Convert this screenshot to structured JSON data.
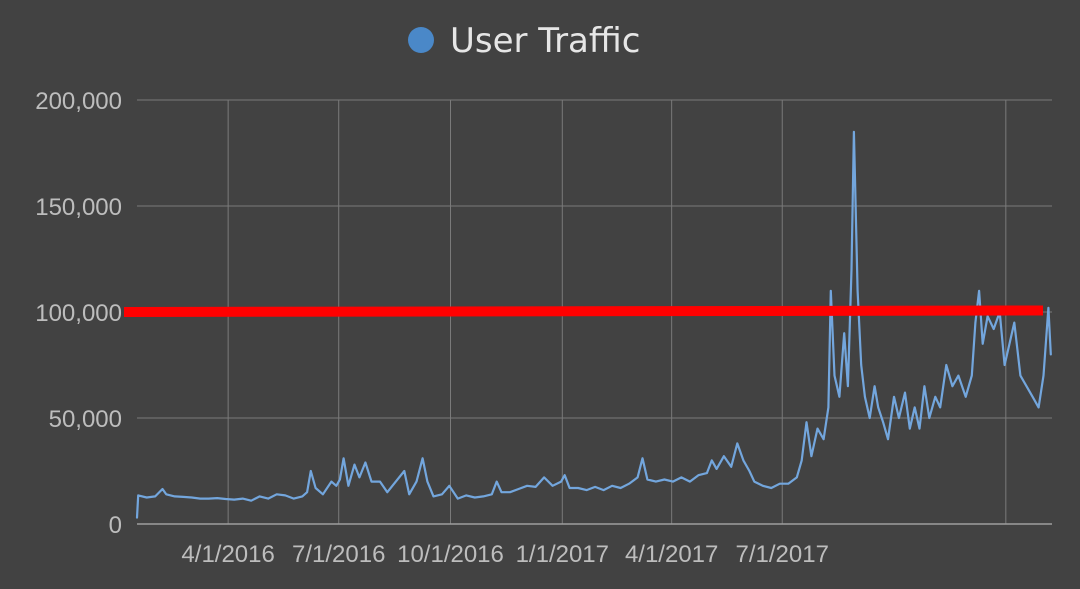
{
  "chart_data": {
    "type": "line",
    "legend": {
      "position": "top-center",
      "entries": [
        {
          "name": "User Traffic",
          "color": "#4a88c8"
        }
      ]
    },
    "series": [
      {
        "name": "User Traffic",
        "color": "#73a6dd",
        "points": [
          [
            "2016-01-17",
            3000
          ],
          [
            "2016-01-18",
            13500
          ],
          [
            "2016-01-25",
            12500
          ],
          [
            "2016-02-01",
            13000
          ],
          [
            "2016-02-07",
            16500
          ],
          [
            "2016-02-10",
            14000
          ],
          [
            "2016-02-17",
            13000
          ],
          [
            "2016-02-24",
            12800
          ],
          [
            "2016-03-02",
            12500
          ],
          [
            "2016-03-09",
            12000
          ],
          [
            "2016-03-16",
            12000
          ],
          [
            "2016-03-23",
            12200
          ],
          [
            "2016-03-30",
            11800
          ],
          [
            "2016-04-06",
            11500
          ],
          [
            "2016-04-13",
            12000
          ],
          [
            "2016-04-20",
            11000
          ],
          [
            "2016-04-27",
            13000
          ],
          [
            "2016-05-04",
            12000
          ],
          [
            "2016-05-11",
            14000
          ],
          [
            "2016-05-18",
            13500
          ],
          [
            "2016-05-25",
            12000
          ],
          [
            "2016-06-01",
            13000
          ],
          [
            "2016-06-05",
            15000
          ],
          [
            "2016-06-08",
            25000
          ],
          [
            "2016-06-12",
            17000
          ],
          [
            "2016-06-18",
            14000
          ],
          [
            "2016-06-25",
            20000
          ],
          [
            "2016-06-29",
            18000
          ],
          [
            "2016-07-02",
            21000
          ],
          [
            "2016-07-05",
            31000
          ],
          [
            "2016-07-09",
            18000
          ],
          [
            "2016-07-14",
            28000
          ],
          [
            "2016-07-18",
            22000
          ],
          [
            "2016-07-23",
            29000
          ],
          [
            "2016-07-28",
            20000
          ],
          [
            "2016-08-04",
            20000
          ],
          [
            "2016-08-10",
            15000
          ],
          [
            "2016-08-17",
            20000
          ],
          [
            "2016-08-24",
            25000
          ],
          [
            "2016-08-28",
            14000
          ],
          [
            "2016-09-03",
            20000
          ],
          [
            "2016-09-08",
            31000
          ],
          [
            "2016-09-12",
            20000
          ],
          [
            "2016-09-17",
            13000
          ],
          [
            "2016-09-24",
            14000
          ],
          [
            "2016-09-30",
            18000
          ],
          [
            "2016-10-07",
            12000
          ],
          [
            "2016-10-14",
            13500
          ],
          [
            "2016-10-21",
            12500
          ],
          [
            "2016-10-28",
            13000
          ],
          [
            "2016-11-04",
            14000
          ],
          [
            "2016-11-08",
            20000
          ],
          [
            "2016-11-12",
            15000
          ],
          [
            "2016-11-19",
            15000
          ],
          [
            "2016-11-26",
            16500
          ],
          [
            "2016-12-03",
            18000
          ],
          [
            "2016-12-10",
            17500
          ],
          [
            "2016-12-17",
            22000
          ],
          [
            "2016-12-24",
            18000
          ],
          [
            "2016-12-31",
            20000
          ],
          [
            "2017-01-03",
            23000
          ],
          [
            "2017-01-07",
            17000
          ],
          [
            "2017-01-14",
            17000
          ],
          [
            "2017-01-21",
            16000
          ],
          [
            "2017-01-28",
            17500
          ],
          [
            "2017-02-04",
            16000
          ],
          [
            "2017-02-11",
            18000
          ],
          [
            "2017-02-18",
            17000
          ],
          [
            "2017-02-25",
            19000
          ],
          [
            "2017-03-04",
            22000
          ],
          [
            "2017-03-08",
            31000
          ],
          [
            "2017-03-12",
            21000
          ],
          [
            "2017-03-19",
            20000
          ],
          [
            "2017-03-26",
            21000
          ],
          [
            "2017-04-02",
            20000
          ],
          [
            "2017-04-09",
            22000
          ],
          [
            "2017-04-16",
            20000
          ],
          [
            "2017-04-23",
            23000
          ],
          [
            "2017-04-30",
            24000
          ],
          [
            "2017-05-04",
            30000
          ],
          [
            "2017-05-08",
            26000
          ],
          [
            "2017-05-14",
            32000
          ],
          [
            "2017-05-20",
            27000
          ],
          [
            "2017-05-25",
            38000
          ],
          [
            "2017-05-30",
            30000
          ],
          [
            "2017-06-04",
            25000
          ],
          [
            "2017-06-08",
            20000
          ],
          [
            "2017-06-15",
            18000
          ],
          [
            "2017-06-22",
            17000
          ],
          [
            "2017-06-29",
            19000
          ],
          [
            "2017-07-06",
            19000
          ],
          [
            "2017-07-13",
            22000
          ],
          [
            "2017-07-17",
            30000
          ],
          [
            "2017-07-21",
            48000
          ],
          [
            "2017-07-25",
            32000
          ],
          [
            "2017-07-30",
            45000
          ],
          [
            "2017-08-04",
            40000
          ],
          [
            "2017-08-08",
            55000
          ],
          [
            "2017-08-10",
            110000
          ],
          [
            "2017-08-13",
            70000
          ],
          [
            "2017-08-17",
            60000
          ],
          [
            "2017-08-21",
            90000
          ],
          [
            "2017-08-24",
            65000
          ],
          [
            "2017-08-27",
            120000
          ],
          [
            "2017-08-29",
            185000
          ],
          [
            "2017-09-01",
            110000
          ],
          [
            "2017-09-04",
            75000
          ],
          [
            "2017-09-07",
            60000
          ],
          [
            "2017-09-11",
            50000
          ],
          [
            "2017-09-15",
            65000
          ],
          [
            "2017-09-18",
            55000
          ],
          [
            "2017-09-22",
            48000
          ],
          [
            "2017-09-26",
            40000
          ],
          [
            "2017-10-01",
            60000
          ],
          [
            "2017-10-05",
            50000
          ],
          [
            "2017-10-10",
            62000
          ],
          [
            "2017-10-14",
            45000
          ],
          [
            "2017-10-18",
            55000
          ],
          [
            "2017-10-22",
            45000
          ],
          [
            "2017-10-26",
            65000
          ],
          [
            "2017-10-30",
            50000
          ],
          [
            "2017-11-04",
            60000
          ],
          [
            "2017-11-08",
            55000
          ],
          [
            "2017-11-13",
            75000
          ],
          [
            "2017-11-18",
            65000
          ],
          [
            "2017-11-23",
            70000
          ],
          [
            "2017-11-29",
            60000
          ],
          [
            "2017-12-04",
            70000
          ],
          [
            "2017-12-07",
            95000
          ],
          [
            "2017-12-10",
            110000
          ],
          [
            "2017-12-13",
            85000
          ],
          [
            "2017-12-17",
            98000
          ],
          [
            "2017-12-22",
            92000
          ],
          [
            "2017-12-27",
            100000
          ],
          [
            "2017-12-31",
            75000
          ],
          [
            "2018-01-04",
            85000
          ],
          [
            "2018-01-08",
            95000
          ],
          [
            "2018-01-13",
            70000
          ],
          [
            "2018-01-18",
            65000
          ],
          [
            "2018-01-23",
            60000
          ],
          [
            "2018-01-28",
            55000
          ],
          [
            "2018-02-01",
            70000
          ],
          [
            "2018-02-05",
            102000
          ],
          [
            "2018-02-07",
            80000
          ]
        ]
      }
    ],
    "x_axis": {
      "ticks": [
        "4/1/2016",
        "7/1/2016",
        "10/1/2016",
        "1/1/2017",
        "4/1/2017",
        "7/1/2017"
      ],
      "extra_gridlines": [
        "2018-01-01"
      ],
      "range": [
        "2016-01-17",
        "2018-02-08"
      ]
    },
    "y_axis": {
      "ticks": [
        "0",
        "50,000",
        "100,000",
        "150,000",
        "200,000"
      ],
      "range": [
        0,
        200000
      ]
    },
    "grid": true,
    "annotations": [
      {
        "type": "horizontal-line",
        "y": 100000,
        "color": "#ff0000"
      }
    ]
  }
}
